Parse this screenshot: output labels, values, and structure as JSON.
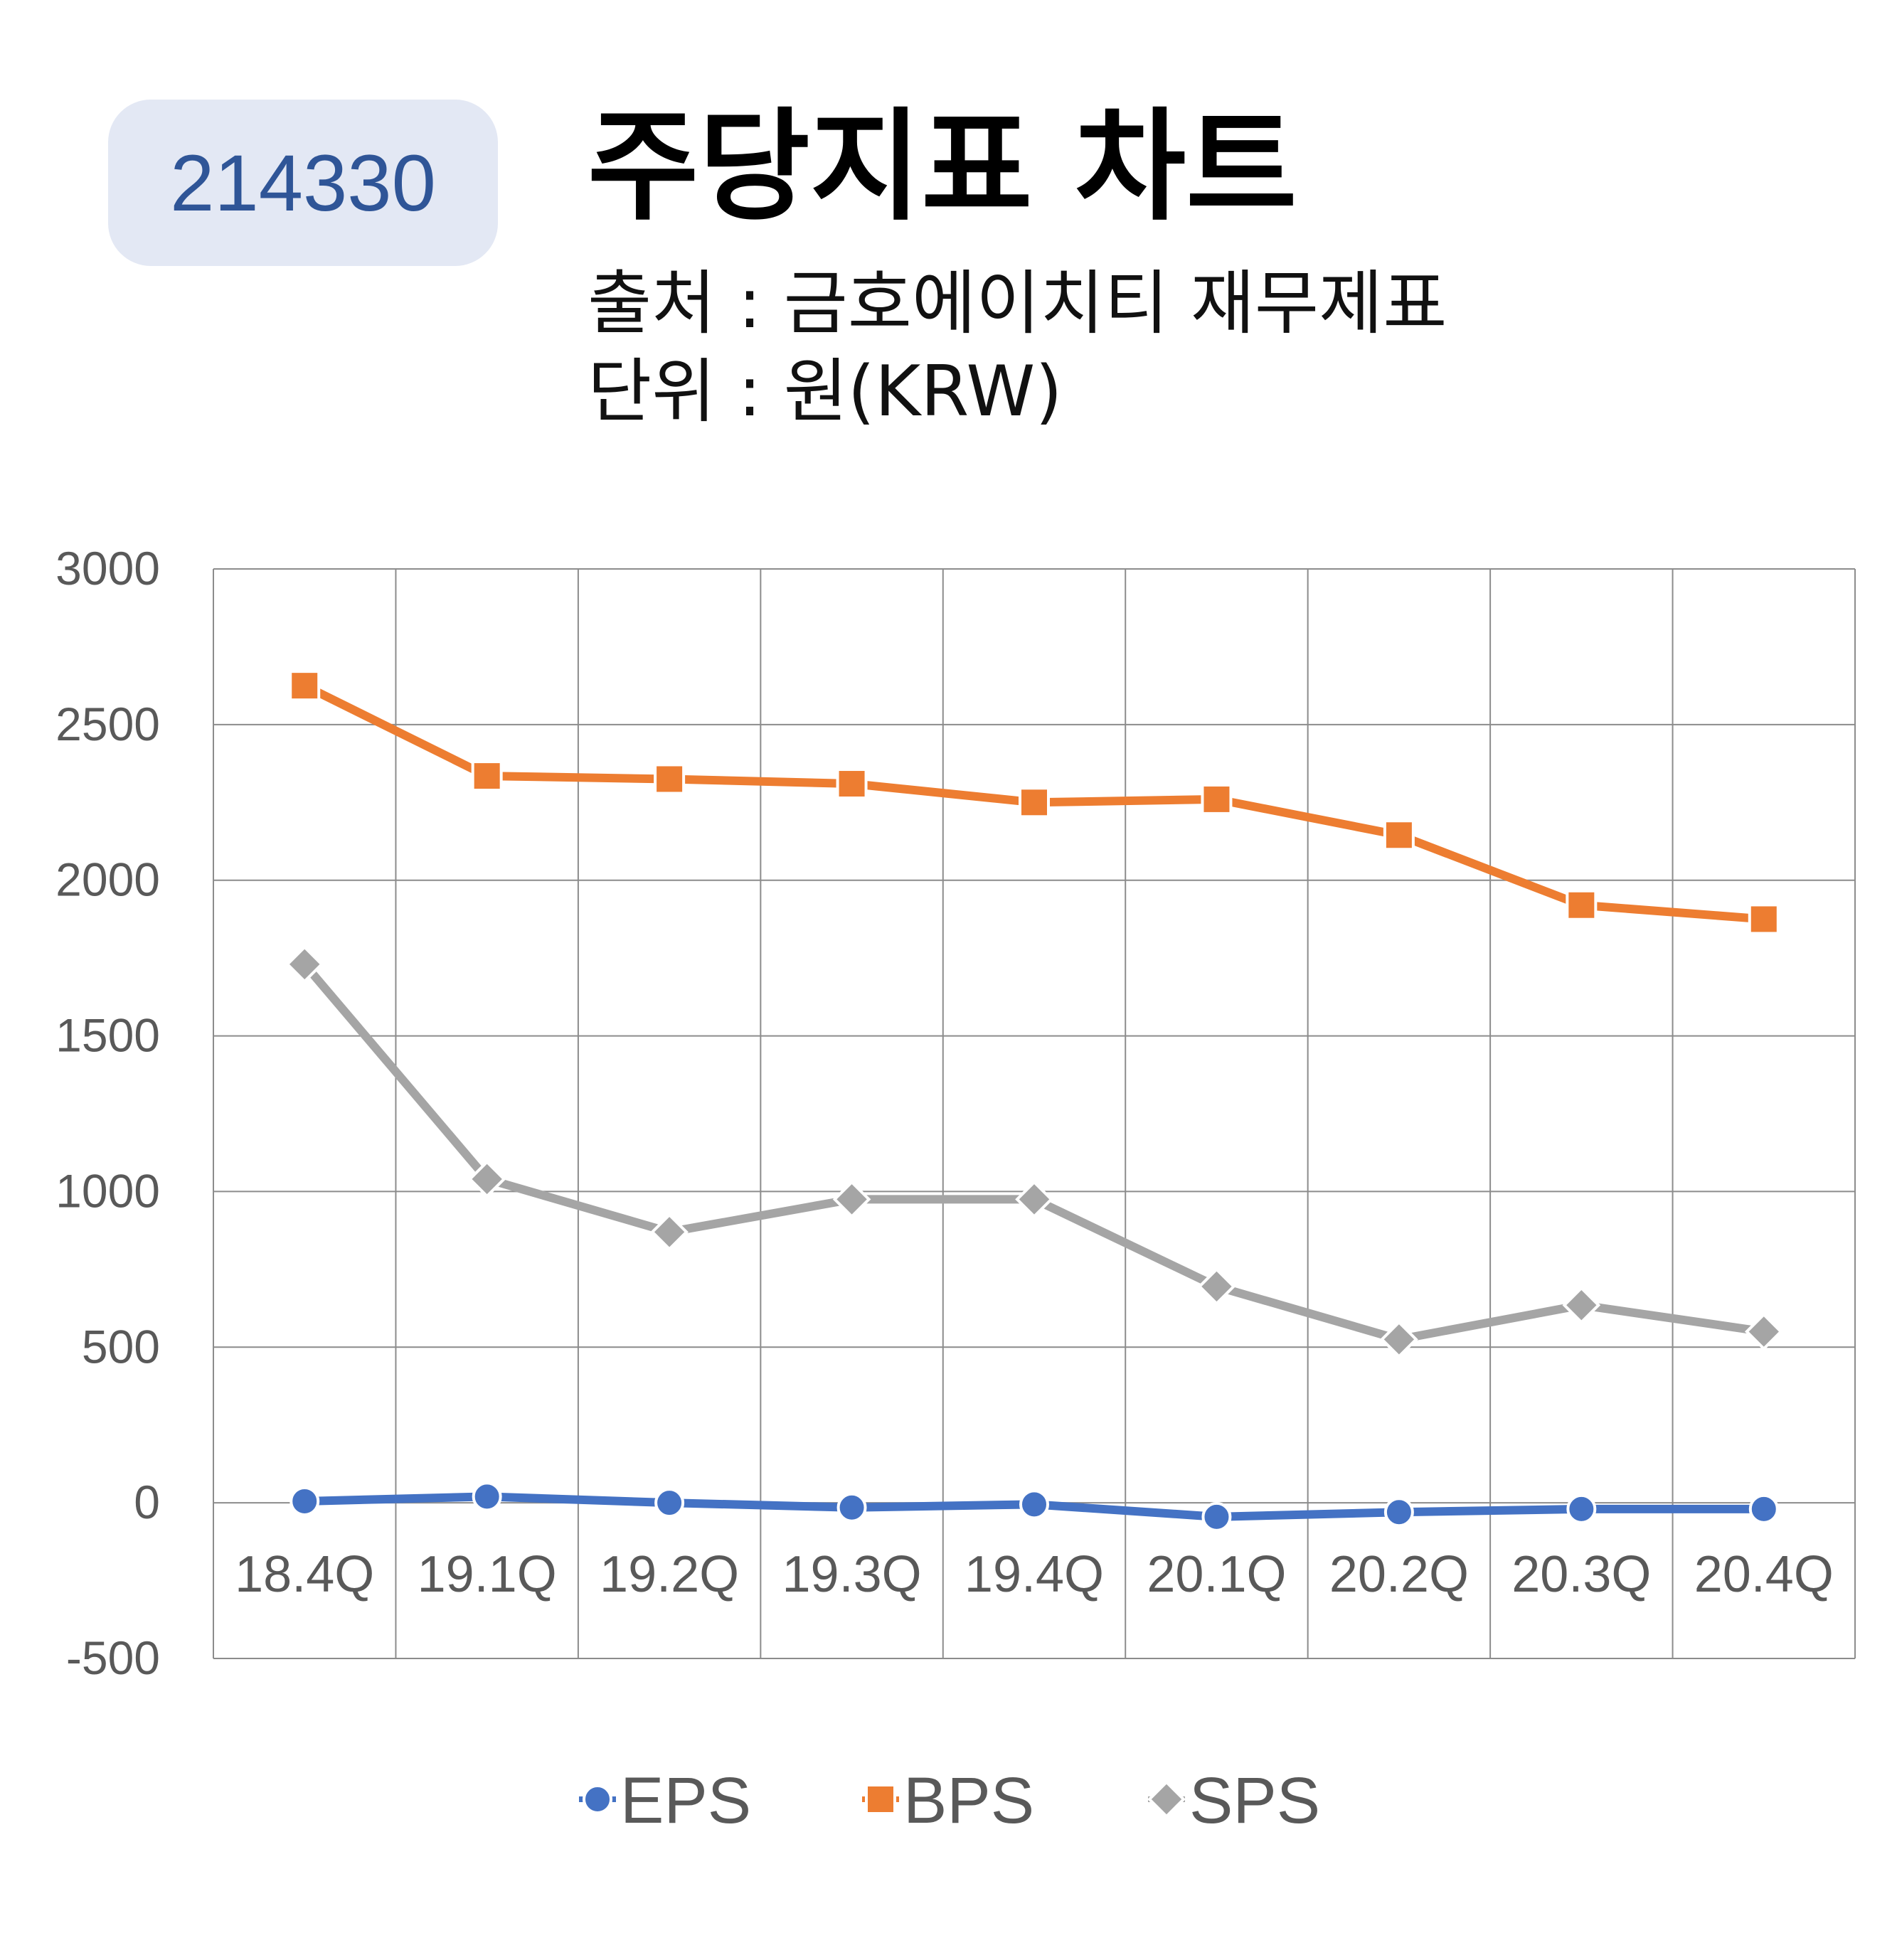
{
  "header": {
    "code": "214330",
    "title": "주당지표 차트",
    "source": "출처 : 금호에이치티 재무제표",
    "unit": "단위 : 원(KRW)"
  },
  "chart_data": {
    "type": "line",
    "categories": [
      "18.4Q",
      "19.1Q",
      "19.2Q",
      "19.3Q",
      "19.4Q",
      "20.1Q",
      "20.2Q",
      "20.3Q",
      "20.4Q"
    ],
    "series": [
      {
        "name": "EPS",
        "color": "#4472c4",
        "marker": "circle",
        "values": [
          5,
          20,
          0,
          -15,
          -5,
          -45,
          -30,
          -20,
          -20
        ]
      },
      {
        "name": "BPS",
        "color": "#ed7d31",
        "marker": "square",
        "values": [
          2625,
          2335,
          2325,
          2310,
          2250,
          2260,
          2145,
          1920,
          1875
        ]
      },
      {
        "name": "SPS",
        "color": "#a5a5a5",
        "marker": "diamond",
        "values": [
          1730,
          1040,
          870,
          975,
          975,
          695,
          525,
          635,
          550
        ]
      }
    ],
    "yticks": [
      3000,
      2500,
      2000,
      1500,
      1000,
      500,
      0,
      -500
    ],
    "ylim": [
      -500,
      3000
    ],
    "grid": true,
    "legend": "bottom"
  }
}
